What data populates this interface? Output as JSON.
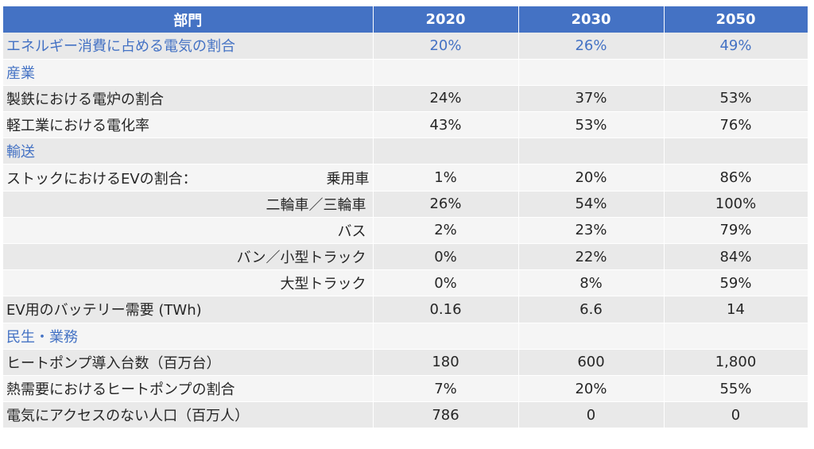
{
  "header": {
    "sector": "部門",
    "y2020": "2020",
    "y2030": "2030",
    "y2050": "2050"
  },
  "rows": [
    {
      "label": "エネルギー消費に占める電気の割合",
      "v2020": "20%",
      "v2030": "26%",
      "v2050": "49%"
    },
    {
      "label": "産業"
    },
    {
      "label": "製鉄における電炉の割合",
      "v2020": "24%",
      "v2030": "37%",
      "v2050": "53%"
    },
    {
      "label": "軽工業における電化率",
      "v2020": "43%",
      "v2030": "53%",
      "v2050": "76%"
    },
    {
      "label": "輸送"
    },
    {
      "label": "ストックにおけるEVの割合：",
      "sublabel": "乗用車",
      "v2020": "1%",
      "v2030": "20%",
      "v2050": "86%"
    },
    {
      "label": "二輪車／三輪車",
      "v2020": "26%",
      "v2030": "54%",
      "v2050": "100%"
    },
    {
      "label": "バス",
      "v2020": "2%",
      "v2030": "23%",
      "v2050": "79%"
    },
    {
      "label": "バン／小型トラック",
      "v2020": "0%",
      "v2030": "22%",
      "v2050": "84%"
    },
    {
      "label": "大型トラック",
      "v2020": "0%",
      "v2030": "8%",
      "v2050": "59%"
    },
    {
      "label": "EV用のバッテリー需要 (TWh)",
      "v2020": "0.16",
      "v2030": "6.6",
      "v2050": "14"
    },
    {
      "label": "民生・業務"
    },
    {
      "label": "ヒートポンプ導入台数（百万台）",
      "v2020": "180",
      "v2030": "600",
      "v2050": "1,800"
    },
    {
      "label": "熱需要におけるヒートポンプの割合",
      "v2020": "7%",
      "v2030": "20%",
      "v2050": "55%"
    },
    {
      "label": "電気にアクセスのない人口（百万人）",
      "v2020": "786",
      "v2030": "0",
      "v2050": "0"
    }
  ]
}
